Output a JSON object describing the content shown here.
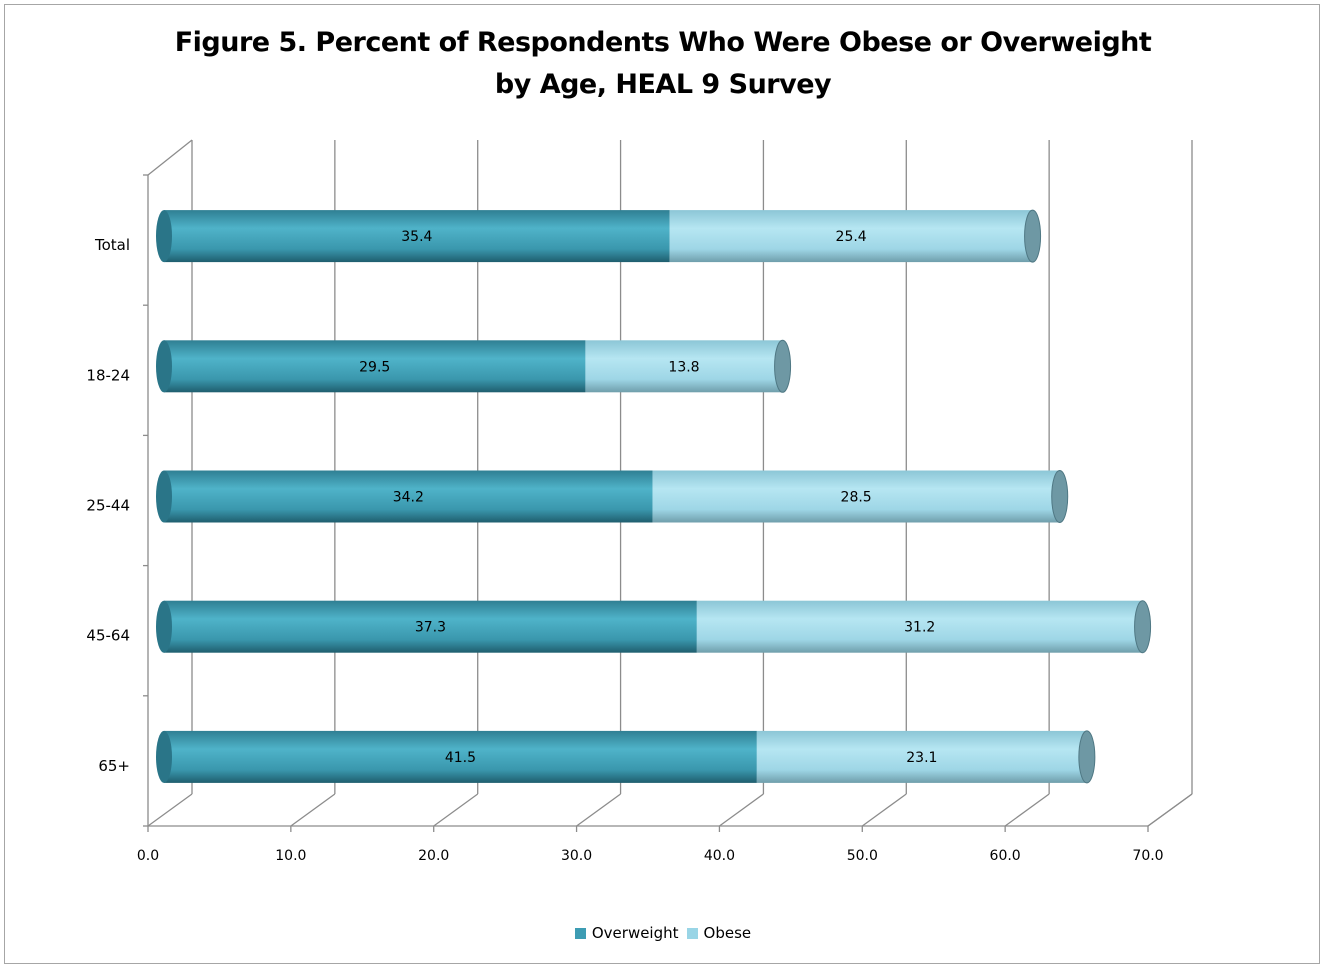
{
  "chart_data": {
    "type": "bar",
    "orientation": "horizontal",
    "stacked": true,
    "title_line1": "Figure 5. Percent of Respondents Who Were Obese or Overweight",
    "title_line2": "by Age, HEAL 9 Survey",
    "categories": [
      "Total",
      "18-24",
      "25-44",
      "45-64",
      "65+"
    ],
    "series": [
      {
        "name": "Overweight",
        "values": [
          35.4,
          29.5,
          34.2,
          37.3,
          41.5
        ],
        "color": "#3d9cb3"
      },
      {
        "name": "Obese",
        "values": [
          25.4,
          13.8,
          28.5,
          31.2,
          23.1
        ],
        "color": "#99d5e6"
      }
    ],
    "x_ticks": [
      "0.0",
      "10.0",
      "20.0",
      "30.0",
      "40.0",
      "50.0",
      "60.0",
      "70.0"
    ],
    "xlim": [
      0,
      70
    ],
    "grid": true,
    "legend_position": "bottom",
    "style": "3d-cylinder"
  }
}
